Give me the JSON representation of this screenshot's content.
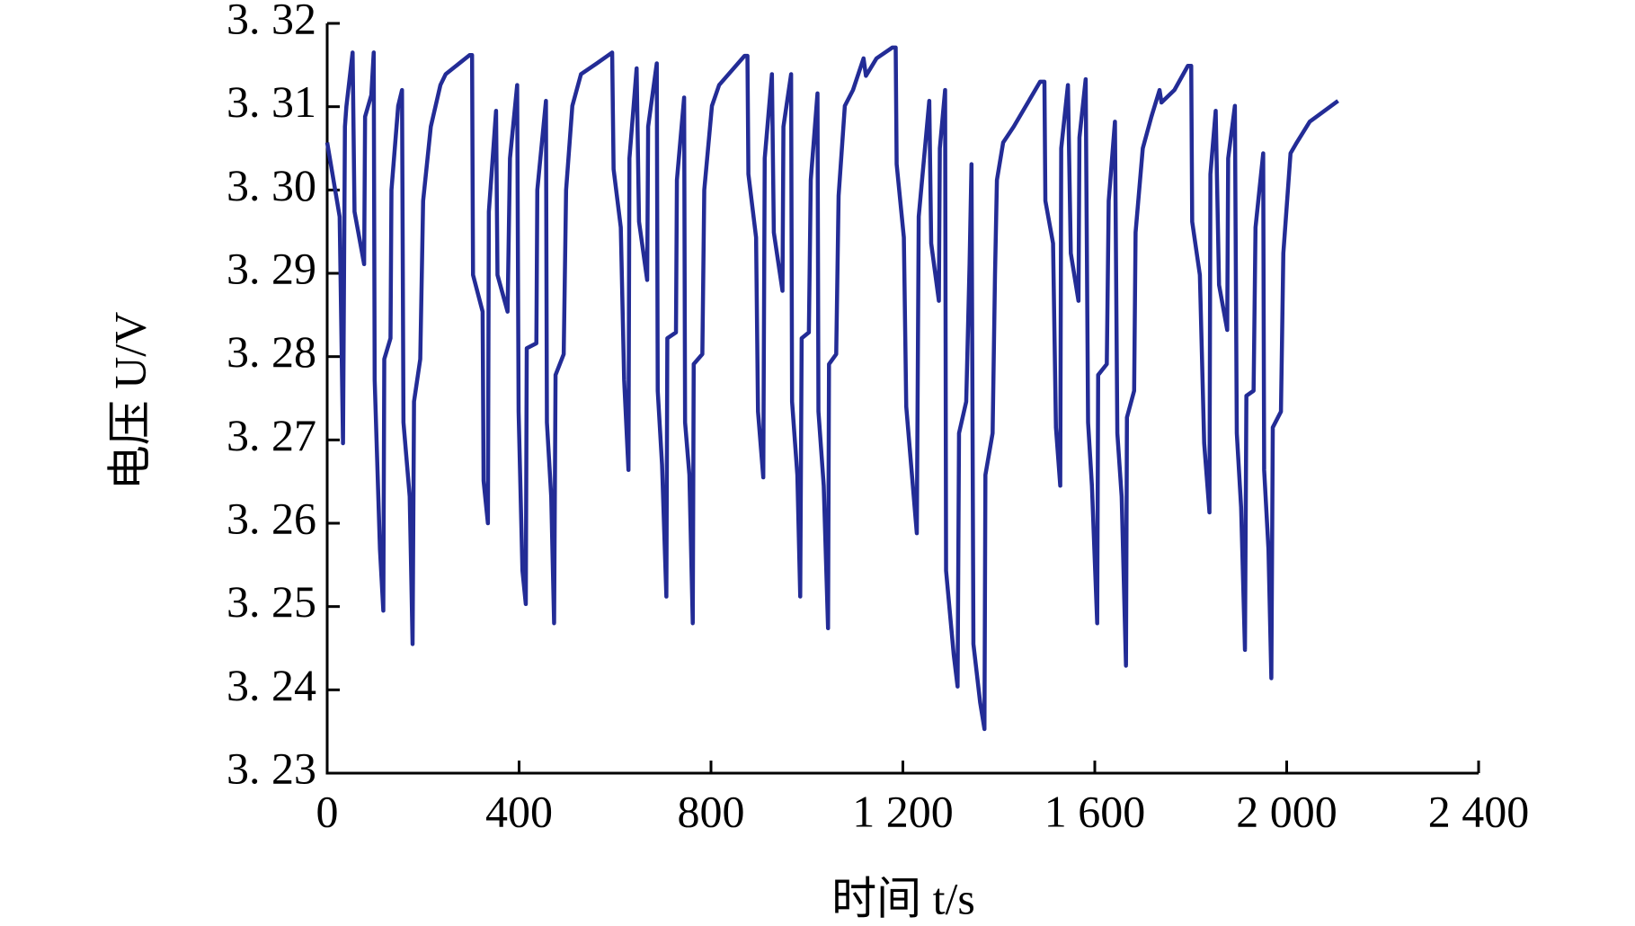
{
  "chart_data": {
    "type": "line",
    "x_label": "时间 t/s",
    "y_label": "电压 U/V",
    "color": "#232c96",
    "x": [
      0,
      26,
      33,
      37,
      40,
      53,
      57,
      77,
      79,
      92,
      97,
      99,
      110,
      117,
      119,
      132,
      134,
      148,
      156,
      159,
      172,
      178,
      181,
      194,
      200,
      216,
      236,
      247,
      297,
      302,
      304,
      324,
      326,
      335,
      337,
      352,
      355,
      376,
      381,
      396,
      399,
      407,
      414,
      416,
      436,
      438,
      456,
      458,
      467,
      473,
      476,
      493,
      498,
      511,
      529,
      562,
      594,
      597,
      612,
      619,
      628,
      630,
      645,
      650,
      667,
      669,
      687,
      689,
      698,
      707,
      709,
      727,
      729,
      744,
      746,
      755,
      762,
      764,
      782,
      786,
      802,
      817,
      870,
      876,
      878,
      894,
      898,
      909,
      912,
      927,
      931,
      949,
      951,
      967,
      969,
      980,
      986,
      989,
      1004,
      1008,
      1022,
      1024,
      1035,
      1044,
      1046,
      1061,
      1066,
      1079,
      1096,
      1118,
      1123,
      1145,
      1178,
      1185,
      1187,
      1202,
      1207,
      1229,
      1233,
      1255,
      1259,
      1275,
      1277,
      1288,
      1290,
      1306,
      1314,
      1317,
      1332,
      1339,
      1343,
      1347,
      1361,
      1370,
      1372,
      1387,
      1392,
      1396,
      1409,
      1431,
      1486,
      1495,
      1497,
      1513,
      1519,
      1528,
      1530,
      1544,
      1550,
      1566,
      1568,
      1581,
      1586,
      1594,
      1605,
      1607,
      1625,
      1629,
      1642,
      1647,
      1656,
      1665,
      1667,
      1682,
      1685,
      1700,
      1718,
      1735,
      1739,
      1766,
      1794,
      1801,
      1803,
      1819,
      1828,
      1839,
      1841,
      1852,
      1859,
      1876,
      1878,
      1892,
      1896,
      1905,
      1913,
      1916,
      1931,
      1935,
      1951,
      1953,
      1962,
      1968,
      1971,
      1988,
      1993,
      2008,
      2021,
      2048,
      2107
    ],
    "values": [
      3.3057,
      3.2968,
      3.2696,
      3.3076,
      3.31,
      3.3165,
      3.2974,
      3.2911,
      3.3088,
      3.3114,
      3.3165,
      3.2772,
      3.2569,
      3.2495,
      3.2797,
      3.2822,
      3.3,
      3.3101,
      3.312,
      3.2721,
      3.2632,
      3.2455,
      3.2746,
      3.2797,
      3.2987,
      3.3076,
      3.3126,
      3.3139,
      3.3162,
      3.3162,
      3.2898,
      3.2854,
      3.2651,
      3.26,
      3.2974,
      3.3095,
      3.2898,
      3.2854,
      3.3038,
      3.3126,
      3.2734,
      3.2543,
      3.2503,
      3.281,
      3.2816,
      3.3,
      3.3107,
      3.2721,
      3.2632,
      3.248,
      3.2778,
      3.2803,
      3.3,
      3.3101,
      3.3139,
      3.3152,
      3.3165,
      3.3025,
      3.2955,
      3.2772,
      3.2664,
      3.3038,
      3.3146,
      3.2962,
      3.2892,
      3.3076,
      3.3152,
      3.2759,
      3.267,
      3.2512,
      3.2822,
      3.2829,
      3.3012,
      3.3111,
      3.2721,
      3.2658,
      3.248,
      3.2791,
      3.2803,
      3.3,
      3.3101,
      3.3126,
      3.3161,
      3.3161,
      3.3019,
      3.2943,
      3.2734,
      3.2655,
      3.3038,
      3.3139,
      3.2949,
      3.2879,
      3.3076,
      3.3139,
      3.2746,
      3.2658,
      3.2512,
      3.2822,
      3.2829,
      3.3012,
      3.3116,
      3.2734,
      3.2645,
      3.2474,
      3.2791,
      3.2803,
      3.2993,
      3.3101,
      3.312,
      3.3158,
      3.3137,
      3.3158,
      3.3171,
      3.3171,
      3.3031,
      3.2943,
      3.274,
      3.2588,
      3.2968,
      3.3107,
      3.2936,
      3.2867,
      3.305,
      3.312,
      3.2543,
      3.2442,
      3.2404,
      3.2708,
      3.2746,
      3.2911,
      3.3031,
      3.2455,
      3.2385,
      3.2353,
      3.2658,
      3.2708,
      3.2898,
      3.3012,
      3.3057,
      3.3076,
      3.313,
      3.313,
      3.2987,
      3.2936,
      3.2715,
      3.2645,
      3.305,
      3.3126,
      3.2924,
      3.2867,
      3.3063,
      3.3133,
      3.2721,
      3.2645,
      3.248,
      3.2778,
      3.2791,
      3.2987,
      3.3082,
      3.2708,
      3.2632,
      3.2429,
      3.2727,
      3.2759,
      3.2949,
      3.305,
      3.3088,
      3.312,
      3.3105,
      3.312,
      3.3149,
      3.3149,
      3.2962,
      3.2898,
      3.2696,
      3.2613,
      3.3019,
      3.3095,
      3.2886,
      3.2832,
      3.3038,
      3.3101,
      3.2708,
      3.2619,
      3.2448,
      3.2753,
      3.2759,
      3.2955,
      3.3044,
      3.2664,
      3.2569,
      3.2414,
      3.2715,
      3.2734,
      3.2924,
      3.3044,
      3.3057,
      3.3082,
      3.3107
    ],
    "xlim": [
      0,
      2400
    ],
    "xticks": [
      0,
      400,
      800,
      {
        "value": 1200,
        "label": "1 200"
      },
      {
        "value": 1600,
        "label": "1 600"
      },
      {
        "value": 2000,
        "label": "2 000"
      },
      {
        "value": 2400,
        "label": "2 400"
      }
    ],
    "ylim": [
      3.23,
      3.32
    ],
    "yticks": [
      {
        "value": 3.23,
        "label": "3. 23"
      },
      {
        "value": 3.24,
        "label": "3. 24"
      },
      {
        "value": 3.25,
        "label": "3. 25"
      },
      {
        "value": 3.26,
        "label": "3. 26"
      },
      {
        "value": 3.27,
        "label": "3. 27"
      },
      {
        "value": 3.28,
        "label": "3. 28"
      },
      {
        "value": 3.29,
        "label": "3. 29"
      },
      {
        "value": 3.3,
        "label": "3. 30"
      },
      {
        "value": 3.31,
        "label": "3. 31"
      },
      {
        "value": 3.32,
        "label": "3. 32"
      }
    ],
    "grid": false
  }
}
